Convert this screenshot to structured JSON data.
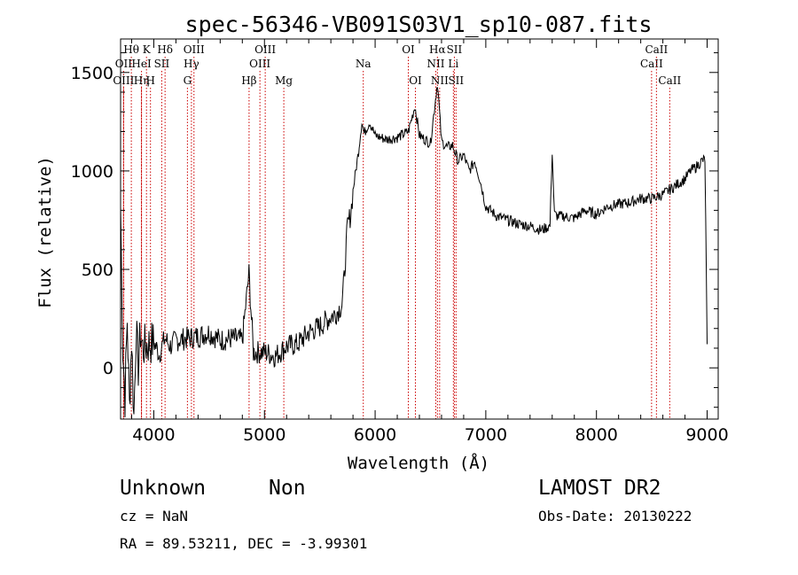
{
  "chart_data": {
    "type": "line",
    "title": "spec-56346-VB091S03V1_sp10-087.fits",
    "xlabel": "Wavelength (Å)",
    "ylabel": "Flux (relative)",
    "xlim": [
      3700,
      9100
    ],
    "ylim": [
      -260,
      1670
    ],
    "x_ticks": [
      4000,
      5000,
      6000,
      7000,
      8000,
      9000
    ],
    "y_ticks": [
      0,
      500,
      1000,
      1500
    ],
    "grid": false,
    "series": [
      {
        "x": [
          3700,
          3720,
          3740,
          3760,
          3780,
          3800,
          3820,
          3840,
          3860,
          3880,
          3900,
          3950,
          4000,
          4050,
          4100,
          4150,
          4200,
          4300,
          4400,
          4500,
          4600,
          4700,
          4800,
          4860,
          4900,
          5000,
          5100,
          5200,
          5300,
          5400,
          5500,
          5600,
          5650,
          5700,
          5720,
          5750,
          5780,
          5800,
          5850,
          5880,
          5900,
          5950,
          6000,
          6100,
          6200,
          6300,
          6360,
          6400,
          6500,
          6563,
          6600,
          6650,
          6700,
          6750,
          6800,
          6850,
          6900,
          6950,
          7000,
          7100,
          7200,
          7300,
          7400,
          7500,
          7580,
          7600,
          7620,
          7650,
          7700,
          7800,
          7900,
          8000,
          8100,
          8200,
          8300,
          8400,
          8500,
          8600,
          8700,
          8800,
          8850,
          8900,
          8950,
          8980,
          9000
        ],
        "y": [
          820,
          100,
          -150,
          250,
          -200,
          150,
          -250,
          200,
          0,
          180,
          100,
          120,
          130,
          70,
          150,
          110,
          140,
          150,
          160,
          180,
          140,
          150,
          140,
          480,
          80,
          80,
          60,
          110,
          120,
          180,
          210,
          260,
          280,
          320,
          450,
          720,
          780,
          900,
          1100,
          1250,
          1190,
          1250,
          1180,
          1160,
          1170,
          1200,
          1330,
          1180,
          1140,
          1450,
          1150,
          1120,
          1130,
          1050,
          1080,
          1000,
          1050,
          950,
          820,
          770,
          750,
          730,
          720,
          700,
          720,
          1100,
          780,
          770,
          770,
          760,
          800,
          780,
          820,
          830,
          840,
          860,
          860,
          880,
          920,
          960,
          1000,
          1020,
          1050,
          1060,
          120
        ]
      }
    ],
    "line_markers": [
      {
        "wl": 3797,
        "labels": [
          "Hθ"
        ],
        "row": 0
      },
      {
        "wl": 3727,
        "labels": [
          "OII"
        ],
        "row": 1
      },
      {
        "wl": 3727,
        "labels": [
          "OIII"
        ],
        "row": 2
      },
      {
        "wl": 3889,
        "labels": [
          "HeI"
        ],
        "row": 1
      },
      {
        "wl": 3934,
        "labels": [
          "K"
        ],
        "row": 0
      },
      {
        "wl": 3970,
        "labels": [
          "H"
        ],
        "row": 2
      },
      {
        "wl": 3889,
        "labels": [
          "Hη"
        ],
        "row": 2
      },
      {
        "wl": 4072,
        "labels": [
          "SII"
        ],
        "row": 1
      },
      {
        "wl": 4102,
        "labels": [
          "Hδ"
        ],
        "row": 0
      },
      {
        "wl": 4340,
        "labels": [
          "Hγ"
        ],
        "row": 1
      },
      {
        "wl": 4363,
        "labels": [
          "OIII"
        ],
        "row": 0
      },
      {
        "wl": 4304,
        "labels": [
          "G"
        ],
        "row": 2
      },
      {
        "wl": 4861,
        "labels": [
          "Hβ"
        ],
        "row": 2
      },
      {
        "wl": 4959,
        "labels": [
          "OIII"
        ],
        "row": 1
      },
      {
        "wl": 5007,
        "labels": [
          "OIII"
        ],
        "row": 0
      },
      {
        "wl": 5175,
        "labels": [
          "Mg"
        ],
        "row": 2
      },
      {
        "wl": 5893,
        "labels": [
          "Na"
        ],
        "row": 1
      },
      {
        "wl": 6300,
        "labels": [
          "OI"
        ],
        "row": 0
      },
      {
        "wl": 6364,
        "labels": [
          "OI"
        ],
        "row": 2
      },
      {
        "wl": 6548,
        "labels": [
          "NII"
        ],
        "row": 1
      },
      {
        "wl": 6563,
        "labels": [
          "Hα"
        ],
        "row": 0
      },
      {
        "wl": 6583,
        "labels": [
          "NII"
        ],
        "row": 2
      },
      {
        "wl": 6707,
        "labels": [
          "Li"
        ],
        "row": 1
      },
      {
        "wl": 6716,
        "labels": [
          "SII"
        ],
        "row": 0
      },
      {
        "wl": 6731,
        "labels": [
          "SII"
        ],
        "row": 2
      },
      {
        "wl": 8498,
        "labels": [
          "CaII"
        ],
        "row": 1
      },
      {
        "wl": 8542,
        "labels": [
          "CaII"
        ],
        "row": 0
      },
      {
        "wl": 8662,
        "labels": [
          "CaII"
        ],
        "row": 2
      }
    ]
  },
  "info": {
    "class": "Unknown",
    "subclass": "Non",
    "cz": "cz = NaN",
    "radec": "RA =  89.53211, DEC =  -3.99301",
    "survey": "LAMOST DR2",
    "obsdate": "Obs-Date: 20130222"
  },
  "colors": {
    "spectrum": "#000000",
    "line_markers": "#cc0000",
    "axis": "#000000"
  }
}
